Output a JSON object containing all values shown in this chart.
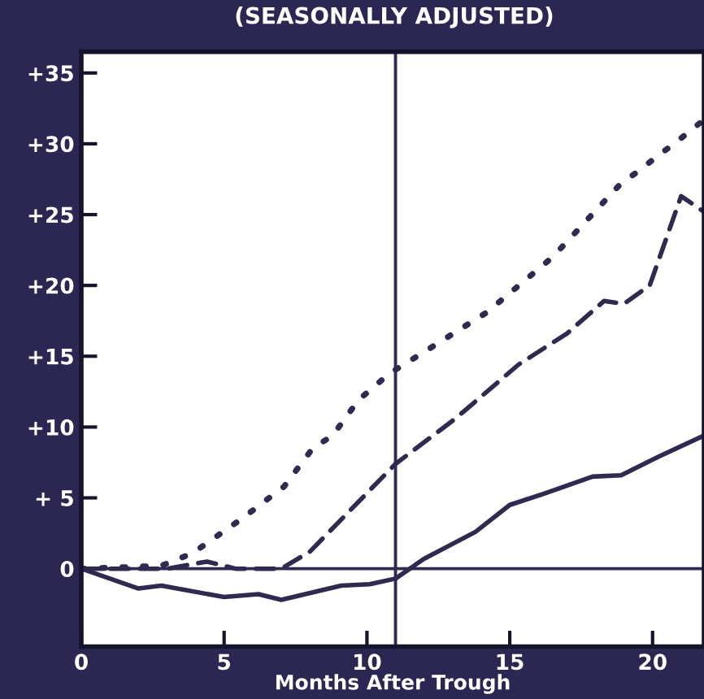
{
  "chart_data": {
    "type": "line",
    "title": "(SEASONALLY ADJUSTED)",
    "xlabel": "Months After Trough",
    "xlim": [
      0,
      21.8
    ],
    "xticks": [
      0,
      5,
      10,
      15,
      20
    ],
    "ylim": [
      -5.5,
      36.5
    ],
    "yticks": [
      {
        "value": 0,
        "label": "0"
      },
      {
        "value": 5,
        "label": "+ 5"
      },
      {
        "value": 10,
        "label": "+10"
      },
      {
        "value": 15,
        "label": "+15"
      },
      {
        "value": 20,
        "label": "+20"
      },
      {
        "value": 25,
        "label": "+25"
      },
      {
        "value": 30,
        "label": "+30"
      },
      {
        "value": 35,
        "label": "+35"
      }
    ],
    "grid": false,
    "legend": false,
    "ref_lines": [
      {
        "axis": "x",
        "value": 11,
        "color": "#2e2a50",
        "line_style": "solid"
      },
      {
        "axis": "y",
        "value": 0,
        "color": "#2e2a50",
        "line_style": "solid"
      }
    ],
    "series": [
      {
        "color": "#2e2a50",
        "line_style": "solid",
        "x": [
          0,
          2,
          2.8,
          5,
          6.2,
          7,
          9.1,
          10.1,
          11,
          12,
          13.8,
          15,
          16.2,
          17.9,
          18.9,
          20.2,
          21.8
        ],
        "values": [
          0,
          -1.4,
          -1.2,
          -2,
          -1.8,
          -2.2,
          -1.2,
          -1.1,
          -0.7,
          0.7,
          2.6,
          4.5,
          5.3,
          6.5,
          6.6,
          7.9,
          9.4
        ]
      },
      {
        "color": "#2e2a50",
        "line_style": "dashed",
        "x": [
          0,
          3,
          4.4,
          5.4,
          7,
          8,
          11,
          13.1,
          15.3,
          17,
          18.3,
          19,
          19.9,
          21,
          21.8
        ],
        "values": [
          0,
          0,
          0.5,
          0,
          0,
          1.2,
          7.4,
          10.6,
          14.4,
          16.6,
          18.9,
          18.7,
          20,
          26.3,
          25.2
        ]
      },
      {
        "color": "#2e2a50",
        "line_style": "dotted",
        "x": [
          0,
          2.8,
          3.9,
          5.6,
          7.1,
          8.1,
          8.8,
          9.7,
          10.8,
          12,
          14.2,
          16.5,
          18.8,
          21,
          21.8
        ],
        "values": [
          0,
          0.2,
          1.1,
          3.5,
          5.8,
          8.5,
          9.4,
          11.9,
          13.8,
          15.3,
          18.1,
          22,
          27,
          30.4,
          31.7
        ]
      }
    ]
  }
}
